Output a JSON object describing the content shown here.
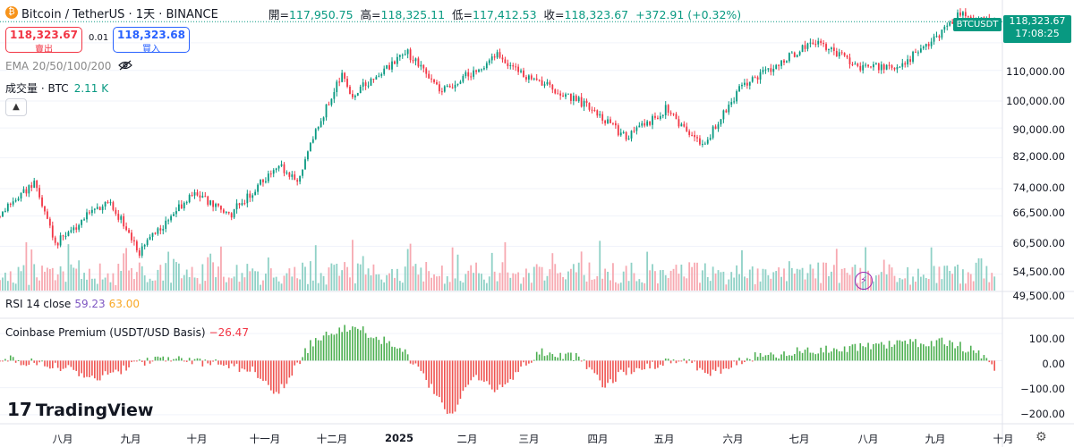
{
  "header": {
    "title": "Bitcoin / TetherUS · 1天 · BINANCE",
    "coin_glyph": "₿",
    "open_label": "開=",
    "open": "117,950.75",
    "high_label": "高=",
    "high": "118,325.11",
    "low_label": "低=",
    "low": "117,412.53",
    "close_label": "收=",
    "close": "118,323.67",
    "change": "+372.91 (+0.32%)"
  },
  "trade": {
    "sell_price": "118,323.67",
    "sell_label": "賣出",
    "spread": "0.01",
    "buy_price": "118,323.68",
    "buy_label": "買入"
  },
  "indicators": {
    "ema_label": "EMA 20/50/100/200",
    "volume_label": "成交量 · BTC",
    "volume_value": "2.11 K",
    "rsi_label": "RSI 14 close",
    "rsi_value": "59.23",
    "rsi_ma": "63.00",
    "premium_label": "Coinbase Premium (USDT/USD Basis)",
    "premium_value": "−26.47"
  },
  "price_axis": {
    "symbol": "BTCUSDT",
    "last_price": "118,323.67",
    "countdown": "17:08:25",
    "ticks": [
      "110,000.00",
      "100,000.00",
      "90,000.00",
      "82,000.00",
      "74,000.00",
      "66,500.00",
      "60,500.00",
      "54,500.00",
      "49,500.00"
    ]
  },
  "premium_axis": {
    "ticks": [
      "100.00",
      "0.00",
      "−100.00",
      "−200.00"
    ]
  },
  "time_axis": [
    "八月",
    "九月",
    "十月",
    "十一月",
    "十二月",
    "2025",
    "二月",
    "三月",
    "四月",
    "五月",
    "六月",
    "七月",
    "八月",
    "九月",
    "十月"
  ],
  "branding": {
    "logo_text": "TradingView",
    "logo_mark": "17"
  },
  "icons": {
    "coin": "bitcoin-coin-icon",
    "eye": "eye-off-icon",
    "collapse": "chevron-up-icon",
    "bolt": "lightning-icon",
    "settings": "gear-icon"
  },
  "colors": {
    "up": "#089981",
    "down": "#f23645",
    "up_vol": "#8fd1c6",
    "down_vol": "#f7a9b1"
  },
  "chart_data": [
    {
      "type": "candlestick",
      "title": "Bitcoin / TetherUS · 1天 · BINANCE",
      "scale": "log",
      "ylim": [
        46500,
        121000
      ],
      "x_range": [
        "2024-07-15",
        "2025-07-31"
      ],
      "grid": true,
      "price_anchors": [
        {
          "date": "2024-07-15",
          "price": 60500
        },
        {
          "date": "2024-07-28",
          "price": 68000
        },
        {
          "date": "2024-08-05",
          "price": 55000
        },
        {
          "date": "2024-08-25",
          "price": 64000
        },
        {
          "date": "2024-09-06",
          "price": 53500
        },
        {
          "date": "2024-09-27",
          "price": 65500
        },
        {
          "date": "2024-10-10",
          "price": 60500
        },
        {
          "date": "2024-10-29",
          "price": 72000
        },
        {
          "date": "2024-11-05",
          "price": 68500
        },
        {
          "date": "2024-11-22",
          "price": 98500
        },
        {
          "date": "2024-11-26",
          "price": 92000
        },
        {
          "date": "2024-12-17",
          "price": 106000
        },
        {
          "date": "2024-12-30",
          "price": 93000
        },
        {
          "date": "2025-01-20",
          "price": 105000
        },
        {
          "date": "2025-02-02",
          "price": 97000
        },
        {
          "date": "2025-02-25",
          "price": 88000
        },
        {
          "date": "2025-03-10",
          "price": 79000
        },
        {
          "date": "2025-03-25",
          "price": 87500
        },
        {
          "date": "2025-04-08",
          "price": 76500
        },
        {
          "date": "2025-04-22",
          "price": 93500
        },
        {
          "date": "2025-05-08",
          "price": 103000
        },
        {
          "date": "2025-05-22",
          "price": 111000
        },
        {
          "date": "2025-06-05",
          "price": 101500
        },
        {
          "date": "2025-06-22",
          "price": 101000
        },
        {
          "date": "2025-07-10",
          "price": 116000
        },
        {
          "date": "2025-07-14",
          "price": 122000
        },
        {
          "date": "2025-07-28",
          "price": 118323.67
        }
      ]
    },
    {
      "type": "bar",
      "title": "Coinbase Premium (USDT/USD Basis)",
      "ylim": [
        -230,
        150
      ],
      "x_range": [
        "2024-07-15",
        "2025-07-31"
      ],
      "premium_anchors": [
        {
          "date": "2024-07-15",
          "value": 10
        },
        {
          "date": "2024-08-10",
          "value": -30
        },
        {
          "date": "2024-08-20",
          "value": -65
        },
        {
          "date": "2024-09-15",
          "value": 15
        },
        {
          "date": "2024-10-10",
          "value": -20
        },
        {
          "date": "2024-10-20",
          "value": -40
        },
        {
          "date": "2024-10-28",
          "value": -130
        },
        {
          "date": "2024-11-10",
          "value": 60
        },
        {
          "date": "2024-11-18",
          "value": 110
        },
        {
          "date": "2024-11-28",
          "value": 120
        },
        {
          "date": "2024-12-15",
          "value": 40
        },
        {
          "date": "2024-12-28",
          "value": -120
        },
        {
          "date": "2025-01-02",
          "value": -210
        },
        {
          "date": "2025-01-10",
          "value": -60
        },
        {
          "date": "2025-01-20",
          "value": -110
        },
        {
          "date": "2025-02-05",
          "value": 30
        },
        {
          "date": "2025-02-20",
          "value": 10
        },
        {
          "date": "2025-03-01",
          "value": -90
        },
        {
          "date": "2025-03-10",
          "value": -40
        },
        {
          "date": "2025-04-01",
          "value": 10
        },
        {
          "date": "2025-04-10",
          "value": -55
        },
        {
          "date": "2025-04-25",
          "value": 10
        },
        {
          "date": "2025-05-20",
          "value": 40
        },
        {
          "date": "2025-06-10",
          "value": 55
        },
        {
          "date": "2025-07-10",
          "value": 70
        },
        {
          "date": "2025-07-24",
          "value": 20
        },
        {
          "date": "2025-07-28",
          "value": -26.47
        }
      ]
    }
  ]
}
